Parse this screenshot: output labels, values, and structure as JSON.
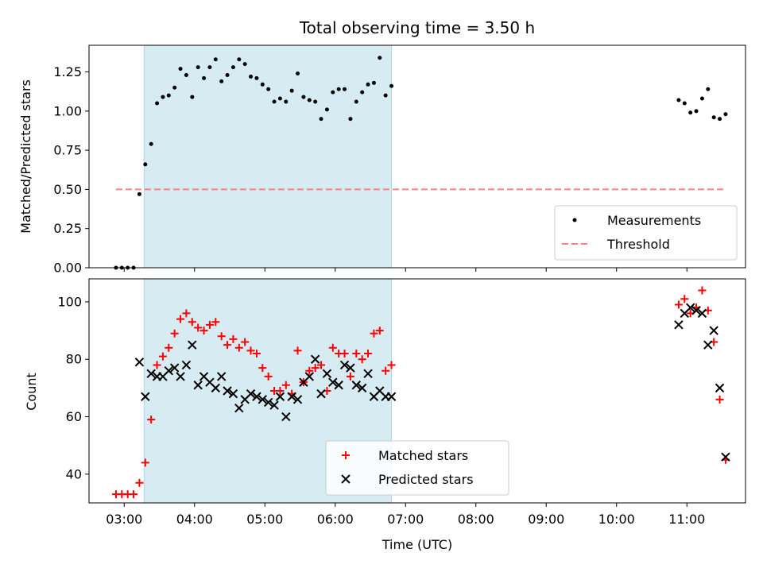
{
  "chart_data": [
    {
      "type": "scatter",
      "title": "Total observing time = 3.50 h",
      "xlabel": "",
      "ylabel": "Matched/Predicted stars",
      "ylim": [
        0,
        1.42
      ],
      "xlim": [
        "02:30",
        "11:50"
      ],
      "yticks": [
        "0.00",
        "0.25",
        "0.50",
        "0.75",
        "1.00",
        "1.25"
      ],
      "shaded_interval": [
        "03:17",
        "06:48"
      ],
      "shade_color": "#add8e6",
      "legend_position": "bottom-right",
      "series": [
        {
          "name": "Measurements",
          "marker": "dot",
          "color": "#000000",
          "x": [
            "02:53",
            "02:58",
            "03:03",
            "03:08",
            "03:13",
            "03:18",
            "03:23",
            "03:28",
            "03:33",
            "03:38",
            "03:43",
            "03:48",
            "03:53",
            "03:58",
            "04:03",
            "04:08",
            "04:13",
            "04:18",
            "04:23",
            "04:28",
            "04:33",
            "04:38",
            "04:43",
            "04:48",
            "04:53",
            "04:58",
            "05:03",
            "05:08",
            "05:13",
            "05:18",
            "05:23",
            "05:28",
            "05:33",
            "05:38",
            "05:43",
            "05:48",
            "05:53",
            "05:58",
            "06:03",
            "06:08",
            "06:13",
            "06:18",
            "06:23",
            "06:28",
            "06:33",
            "06:38",
            "06:43",
            "06:48",
            "10:53",
            "10:58",
            "11:03",
            "11:08",
            "11:13",
            "11:18",
            "11:23",
            "11:28",
            "11:33"
          ],
          "values": [
            0.0,
            0.0,
            0.0,
            0.0,
            0.47,
            0.66,
            0.79,
            1.05,
            1.09,
            1.1,
            1.15,
            1.27,
            1.23,
            1.09,
            1.28,
            1.21,
            1.28,
            1.33,
            1.19,
            1.23,
            1.28,
            1.33,
            1.3,
            1.22,
            1.21,
            1.17,
            1.14,
            1.06,
            1.08,
            1.06,
            1.13,
            1.24,
            1.09,
            1.07,
            1.06,
            0.95,
            1.01,
            1.12,
            1.14,
            1.14,
            0.95,
            1.06,
            1.12,
            1.17,
            1.18,
            1.34,
            1.1,
            1.16,
            1.07,
            1.05,
            0.99,
            1.0,
            1.08,
            1.14,
            0.96,
            0.95,
            0.98
          ]
        },
        {
          "name": "Threshold",
          "marker": "dashed-line",
          "color": "#ff8080",
          "x": [
            "02:53",
            "11:33"
          ],
          "values": [
            0.5,
            0.5
          ]
        }
      ]
    },
    {
      "type": "scatter",
      "title": "",
      "xlabel": "Time (UTC)",
      "ylabel": "Count",
      "ylim": [
        30,
        108
      ],
      "xlim": [
        "02:30",
        "11:50"
      ],
      "yticks": [
        "40",
        "60",
        "80",
        "100"
      ],
      "xticks": [
        "03:00",
        "04:00",
        "05:00",
        "06:00",
        "07:00",
        "08:00",
        "09:00",
        "10:00",
        "11:00"
      ],
      "shaded_interval": [
        "03:17",
        "06:48"
      ],
      "shade_color": "#add8e6",
      "legend_position": "bottom-center",
      "series": [
        {
          "name": "Matched stars",
          "marker": "plus",
          "color": "#ff0000",
          "x": [
            "02:53",
            "02:58",
            "03:03",
            "03:08",
            "03:13",
            "03:18",
            "03:23",
            "03:28",
            "03:33",
            "03:38",
            "03:43",
            "03:48",
            "03:53",
            "03:58",
            "04:03",
            "04:08",
            "04:13",
            "04:18",
            "04:23",
            "04:28",
            "04:33",
            "04:38",
            "04:43",
            "04:48",
            "04:53",
            "04:58",
            "05:03",
            "05:08",
            "05:13",
            "05:18",
            "05:23",
            "05:28",
            "05:33",
            "05:38",
            "05:43",
            "05:48",
            "05:53",
            "05:58",
            "06:03",
            "06:08",
            "06:13",
            "06:18",
            "06:23",
            "06:28",
            "06:33",
            "06:38",
            "06:43",
            "06:48",
            "10:53",
            "10:58",
            "11:03",
            "11:08",
            "11:13",
            "11:18",
            "11:23",
            "11:28",
            "11:33"
          ],
          "values": [
            33,
            33,
            33,
            33,
            37,
            44,
            59,
            78,
            81,
            84,
            89,
            94,
            96,
            93,
            91,
            90,
            92,
            93,
            88,
            85,
            87,
            84,
            86,
            83,
            82,
            77,
            74,
            69,
            69,
            71,
            68,
            83,
            72,
            76,
            77,
            78,
            69,
            84,
            82,
            82,
            74,
            82,
            80,
            82,
            89,
            90,
            76,
            78,
            99,
            101,
            96,
            98,
            104,
            97,
            86,
            66,
            45
          ]
        },
        {
          "name": "Predicted stars",
          "marker": "x",
          "color": "#000000",
          "x": [
            "03:13",
            "03:18",
            "03:23",
            "03:28",
            "03:33",
            "03:38",
            "03:43",
            "03:48",
            "03:53",
            "03:58",
            "04:03",
            "04:08",
            "04:13",
            "04:18",
            "04:23",
            "04:28",
            "04:33",
            "04:38",
            "04:43",
            "04:48",
            "04:53",
            "04:58",
            "05:03",
            "05:08",
            "05:13",
            "05:18",
            "05:23",
            "05:28",
            "05:33",
            "05:38",
            "05:43",
            "05:48",
            "05:53",
            "05:58",
            "06:03",
            "06:08",
            "06:13",
            "06:18",
            "06:23",
            "06:28",
            "06:33",
            "06:38",
            "06:43",
            "06:48",
            "10:53",
            "10:58",
            "11:03",
            "11:08",
            "11:13",
            "11:18",
            "11:23",
            "11:28",
            "11:33"
          ],
          "values": [
            79,
            67,
            75,
            74,
            74,
            76,
            77,
            74,
            78,
            85,
            71,
            74,
            72,
            70,
            74,
            69,
            68,
            63,
            66,
            68,
            67,
            66,
            65,
            64,
            67,
            60,
            67,
            66,
            72,
            74,
            80,
            68,
            75,
            72,
            71,
            78,
            77,
            71,
            70,
            75,
            67,
            69,
            67,
            67,
            92,
            96,
            98,
            97,
            96,
            85,
            90,
            70,
            46
          ]
        }
      ]
    }
  ]
}
